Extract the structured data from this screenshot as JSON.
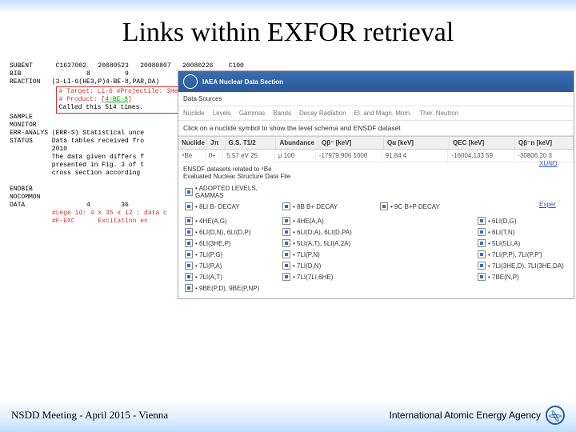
{
  "slide": {
    "title": "Links within EXFOR retrieval",
    "footer_left": "NSDD Meeting - April 2015 - Vienna",
    "footer_right": "International Atomic Energy Agency"
  },
  "exfor": {
    "l1": "SUBENT      C1637002   20080523   20080807   20080226    C100",
    "l2": "BIB                 8         9",
    "l3": "REACTION   (3-LI-6(HE3,P)4-BE-8,PAR,DA)",
    "box_line1": "# Target: Li-6 #Projectile: 3He",
    "box_line2": "# Product: [4-BE-8]",
    "box_line3": "Called this 514 times.",
    "l4": "SAMPLE",
    "l5": "MONITOR",
    "l6": "ERR-ANALYS (ERR-S) Statistical unce",
    "l7": "STATUS     Data tables received fro",
    "l8": "           2010",
    "l9": "           The data given differs f",
    "l10": "           presented in Fig. 3 of t",
    "l11": "           cross section according",
    "l12": "ENDBIB",
    "l13": "NOCOMMON",
    "l14": "DATA                4        36",
    "legend": "#Lege id: 4 x 35 x 12 : data c",
    "fexc": "#F-EXC      Excitation en"
  },
  "panel": {
    "header": "IAEA Nuclear Data Section",
    "sub": "Data Sources",
    "tabs": [
      "Nuclide",
      "Levels",
      "Gammas",
      "Bands",
      "Decay Radiation",
      "El. and Magn. Mom.",
      "Ther. Neutron"
    ],
    "instruction": "Click on a nuclide symbol to show the level schema and ENSDF dataset",
    "table": {
      "headers": [
        "Nuclide",
        "Jπ",
        "G.S. T1/2",
        "Abundance",
        "Qβ⁻\n[keV]",
        "Qα\n[keV]",
        "QEC\n[keV]",
        "Qβ⁻n\n[keV]"
      ],
      "row": [
        "⁸Be",
        "0+",
        "5.57 eV 25",
        "µ 100",
        "-17979.906 1000",
        "91.84 4",
        "-16004.133 59",
        "-30806.20 3"
      ]
    },
    "sub2a": "ENSDF datasets related to ⁸Be",
    "sub2b": "Evaluated Nuclear Structure Data File",
    "side1": "XUND",
    "side2": "Exper",
    "datasets": [
      "• ADOPTED LEVELS, GAMMAS",
      "",
      "",
      "",
      "• 8LI B- DECAY",
      "• 8B B+ DECAY",
      "• 9C B+P DECAY",
      "",
      "",
      "",
      "",
      "",
      "• 4HE(A,G)",
      "• 4HE(A,A)",
      "",
      "• 6LI(D,G)",
      "• 6LI(D,N), 6LI(D,P)",
      "• 6LI(D,A), 6LI(D,PA)",
      "",
      "• 6LI(T,N)",
      "• 6LI(3HE,P)",
      "• 5LI(A,T), 5LI(A,2A)",
      "",
      "• 5LI(5LI,A)",
      "• 7LI(P,G)",
      "• 7LI(P,N)",
      "",
      "• 7LI(P,P), 7LI(P,P')",
      "• 7LI(P,A)",
      "• 7LI(D,N)",
      "",
      "• 7LI(3HE,D), 7LI(3HE,DA)",
      "• 7LI(A,T)",
      "• 7LI(7LI,6HE)",
      "",
      "• 7BE(N,P)",
      "• 9BE(P,D), 9BE(P,NP)",
      "",
      "",
      ""
    ]
  }
}
